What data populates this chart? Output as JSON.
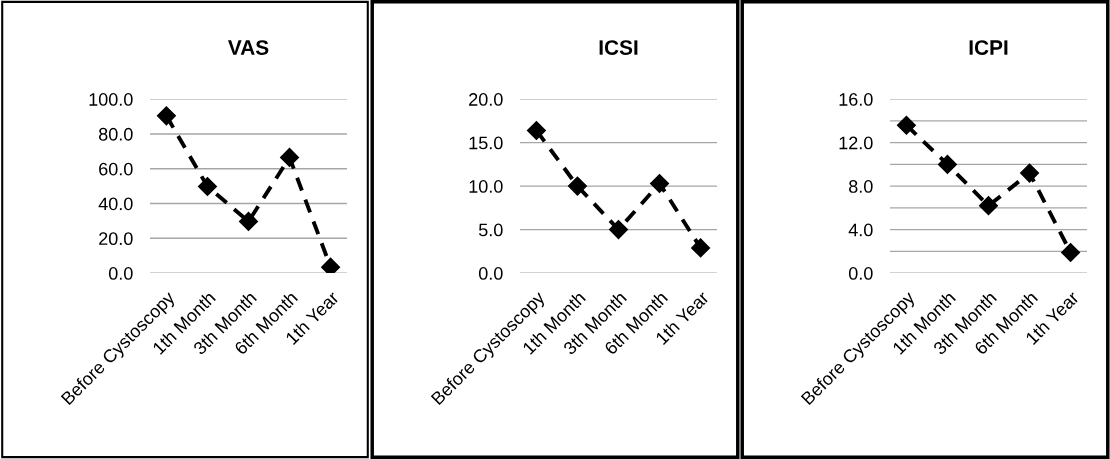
{
  "chart_data": [
    {
      "type": "line",
      "title": "VAS",
      "categories": [
        "Before Cystoscopy",
        "1th Month",
        "3th Month",
        "6th Month",
        "1th Year"
      ],
      "series": [
        {
          "color": "#000000",
          "values": [
            90.4,
            49.8,
            29.7,
            66.5,
            3.4
          ]
        }
      ],
      "ylim": [
        0,
        100
      ],
      "yticks": [
        {
          "value": 0,
          "label": "0.0"
        },
        {
          "value": 20,
          "label": "20.0"
        },
        {
          "value": 40,
          "label": "40.0"
        },
        {
          "value": 60,
          "label": "60.0"
        },
        {
          "value": 80,
          "label": "80.0"
        },
        {
          "value": 100,
          "label": "100.0"
        }
      ],
      "grid": "y",
      "marker": "diamond",
      "line_style": "dashed"
    },
    {
      "type": "line",
      "title": "ICSI",
      "categories": [
        "Before Cystoscopy",
        "1th Month",
        "3th Month",
        "6th Month",
        "1th Year"
      ],
      "series": [
        {
          "color": "#000000",
          "values": [
            16.4,
            10.0,
            5.0,
            10.3,
            2.9
          ]
        }
      ],
      "ylim": [
        0,
        20
      ],
      "yticks": [
        {
          "value": 0,
          "label": "0.0"
        },
        {
          "value": 5,
          "label": "5.0"
        },
        {
          "value": 10,
          "label": "10.0"
        },
        {
          "value": 15,
          "label": "15.0"
        },
        {
          "value": 20,
          "label": "20.0"
        }
      ],
      "grid": "y",
      "marker": "diamond",
      "line_style": "dashed"
    },
    {
      "type": "line",
      "title": "ICPI",
      "categories": [
        "Before Cystoscopy",
        "1th Month",
        "3th Month",
        "6th Month",
        "1th Year"
      ],
      "series": [
        {
          "color": "#000000",
          "values": [
            13.6,
            10.0,
            6.2,
            9.2,
            1.9
          ]
        }
      ],
      "ylim": [
        0,
        16
      ],
      "yticks": [
        {
          "value": 0,
          "label": "0.0"
        },
        {
          "value": 2,
          "label": null
        },
        {
          "value": 4,
          "label": "4.0"
        },
        {
          "value": 6,
          "label": null
        },
        {
          "value": 8,
          "label": "8.0"
        },
        {
          "value": 10,
          "label": null
        },
        {
          "value": 12,
          "label": "12.0"
        },
        {
          "value": 14,
          "label": null
        },
        {
          "value": 16,
          "label": "16.0"
        }
      ],
      "grid": "y",
      "marker": "diamond",
      "line_style": "dashed"
    }
  ]
}
